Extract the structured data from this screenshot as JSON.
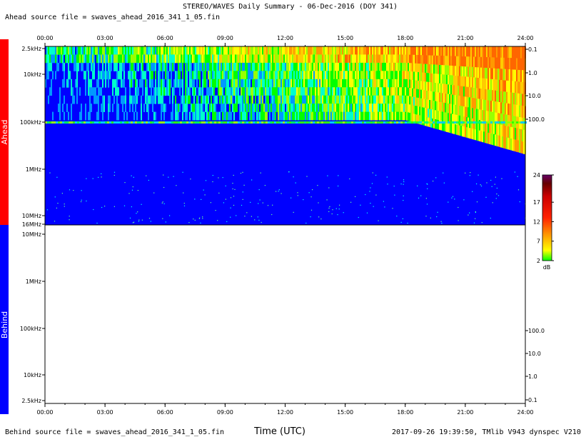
{
  "title": "STEREO/WAVES Daily Summary - 06-Dec-2016 (DOY 341)",
  "ahead_source": "Ahead source file = swaves_ahead_2016_341_1_05.fin",
  "behind_source": "Behind source file = swaves_ahead_2016_341_1_05.fin",
  "footer_right": "2017-09-26 19:39:50, TMlib V943 dynspec V210",
  "colors": {
    "ahead": "#ff0000",
    "behind": "#0000ff",
    "background_fill": "#0000ff"
  },
  "chart_data": {
    "type": "heatmap",
    "xlabel": "Time (UTC)",
    "x_ticks": [
      "00:00",
      "03:00",
      "06:00",
      "09:00",
      "12:00",
      "15:00",
      "18:00",
      "21:00",
      "24:00"
    ],
    "panels": [
      {
        "name": "Ahead",
        "freq_ticks": [
          "2.5kHz",
          "10kHz",
          "100kHz",
          "1MHz",
          "10MHz",
          "16MHz"
        ],
        "right_ticks": [
          "0.1",
          "1.0",
          "10.0",
          "100.0"
        ],
        "filled": true
      },
      {
        "name": "Behind",
        "freq_ticks": [
          "10MHz",
          "1MHz",
          "100kHz",
          "10kHz",
          "2.5kHz"
        ],
        "right_ticks": [
          "100.0",
          "10.0",
          "1.0",
          "0.1"
        ],
        "filled": false
      }
    ],
    "colorbar": {
      "unit": "dB",
      "ticks": [
        "24",
        "17",
        "12",
        "7",
        "2"
      ],
      "range": [
        2,
        24
      ]
    }
  }
}
